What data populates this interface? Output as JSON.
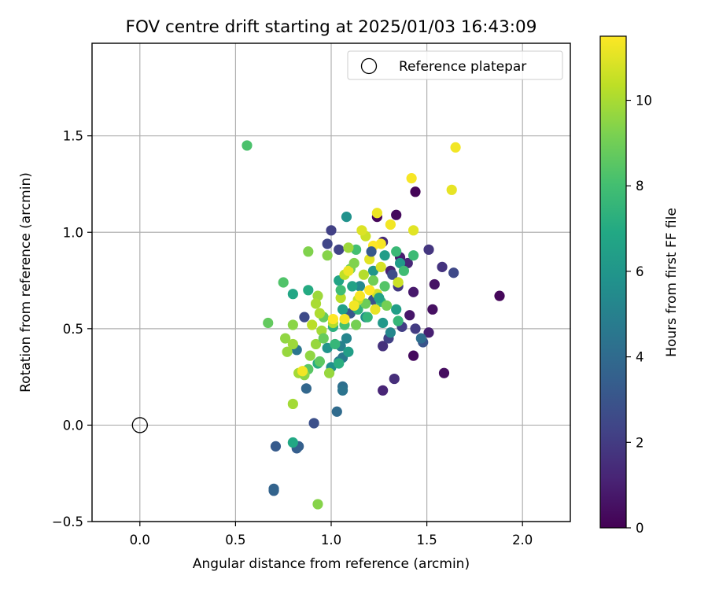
{
  "chart_data": {
    "type": "scatter",
    "title": "FOV centre drift starting at 2025/01/03 16:43:09",
    "xlabel": "Angular distance from reference (arcmin)",
    "ylabel": "Rotation from reference (arcmin)",
    "xlim": [
      -0.25,
      2.25
    ],
    "ylim": [
      -0.5,
      1.98
    ],
    "xticks": [
      0.0,
      0.5,
      1.0,
      1.5,
      2.0
    ],
    "xtick_labels": [
      "0.0",
      "0.5",
      "1.0",
      "1.5",
      "2.0"
    ],
    "yticks": [
      -0.5,
      0.0,
      0.5,
      1.0,
      1.5
    ],
    "ytick_labels": [
      "−0.5",
      "0.0",
      "0.5",
      "1.0",
      "1.5"
    ],
    "grid": true,
    "legend": {
      "position": "top-right",
      "entries": [
        "Reference platepar"
      ]
    },
    "reference_point": {
      "x": 0.0,
      "y": 0.0,
      "marker": "open-circle",
      "label": "Reference platepar"
    },
    "colorbar": {
      "label": "Hours from first FF file",
      "colormap": "viridis",
      "range": [
        0,
        11.5
      ],
      "ticks": [
        0,
        2,
        4,
        6,
        8,
        10
      ],
      "tick_labels": [
        "0",
        "2",
        "4",
        "6",
        "8",
        "10"
      ]
    },
    "points": [
      {
        "x": 1.88,
        "y": 0.67,
        "h": 0.2
      },
      {
        "x": 1.44,
        "y": 1.21,
        "h": 0.1
      },
      {
        "x": 1.24,
        "y": 1.08,
        "h": 0.2
      },
      {
        "x": 1.34,
        "y": 1.09,
        "h": 0.3
      },
      {
        "x": 1.59,
        "y": 0.27,
        "h": 0.4
      },
      {
        "x": 1.43,
        "y": 0.36,
        "h": 0.3
      },
      {
        "x": 1.53,
        "y": 0.6,
        "h": 0.5
      },
      {
        "x": 1.54,
        "y": 0.73,
        "h": 0.6
      },
      {
        "x": 1.43,
        "y": 0.69,
        "h": 0.8
      },
      {
        "x": 1.41,
        "y": 0.57,
        "h": 0.7
      },
      {
        "x": 1.36,
        "y": 0.87,
        "h": 0.9
      },
      {
        "x": 1.51,
        "y": 0.48,
        "h": 1.0
      },
      {
        "x": 1.27,
        "y": 0.18,
        "h": 1.2
      },
      {
        "x": 1.31,
        "y": 0.8,
        "h": 1.1
      },
      {
        "x": 1.4,
        "y": 0.84,
        "h": 1.3
      },
      {
        "x": 1.27,
        "y": 0.95,
        "h": 1.4
      },
      {
        "x": 1.33,
        "y": 0.24,
        "h": 1.5
      },
      {
        "x": 1.27,
        "y": 0.41,
        "h": 1.6
      },
      {
        "x": 1.58,
        "y": 0.82,
        "h": 1.7
      },
      {
        "x": 1.51,
        "y": 0.91,
        "h": 1.8
      },
      {
        "x": 1.44,
        "y": 0.5,
        "h": 2.0
      },
      {
        "x": 1.37,
        "y": 0.51,
        "h": 2.1
      },
      {
        "x": 1.3,
        "y": 0.45,
        "h": 2.2
      },
      {
        "x": 1.35,
        "y": 0.72,
        "h": 1.9
      },
      {
        "x": 1.0,
        "y": 1.01,
        "h": 2.2
      },
      {
        "x": 0.98,
        "y": 0.94,
        "h": 2.4
      },
      {
        "x": 1.04,
        "y": 0.91,
        "h": 2.3
      },
      {
        "x": 1.64,
        "y": 0.79,
        "h": 2.5
      },
      {
        "x": 1.48,
        "y": 0.43,
        "h": 3.0
      },
      {
        "x": 0.91,
        "y": 0.01,
        "h": 2.8
      },
      {
        "x": 0.86,
        "y": 0.56,
        "h": 2.6
      },
      {
        "x": 1.32,
        "y": 0.78,
        "h": 2.7
      },
      {
        "x": 1.22,
        "y": 0.65,
        "h": 2.9
      },
      {
        "x": 1.1,
        "y": 0.58,
        "h": 3.1
      },
      {
        "x": 0.71,
        "y": -0.11,
        "h": 3.3
      },
      {
        "x": 0.82,
        "y": -0.12,
        "h": 3.4
      },
      {
        "x": 0.83,
        "y": -0.11,
        "h": 3.5
      },
      {
        "x": 0.7,
        "y": -0.34,
        "h": 3.6
      },
      {
        "x": 0.7,
        "y": -0.33,
        "h": 3.7
      },
      {
        "x": 0.87,
        "y": 0.19,
        "h": 3.8
      },
      {
        "x": 1.03,
        "y": 0.07,
        "h": 4.0
      },
      {
        "x": 1.06,
        "y": 0.2,
        "h": 4.2
      },
      {
        "x": 1.06,
        "y": 0.18,
        "h": 4.4
      },
      {
        "x": 0.82,
        "y": 0.39,
        "h": 4.5
      },
      {
        "x": 1.08,
        "y": 1.08,
        "h": 5.8
      },
      {
        "x": 1.06,
        "y": 0.35,
        "h": 4.6
      },
      {
        "x": 1.04,
        "y": 0.33,
        "h": 4.8
      },
      {
        "x": 1.05,
        "y": 0.41,
        "h": 5.0
      },
      {
        "x": 1.08,
        "y": 0.45,
        "h": 5.2
      },
      {
        "x": 1.15,
        "y": 0.72,
        "h": 5.4
      },
      {
        "x": 1.18,
        "y": 0.56,
        "h": 5.6
      },
      {
        "x": 1.0,
        "y": 0.3,
        "h": 5.7
      },
      {
        "x": 0.98,
        "y": 0.4,
        "h": 5.9
      },
      {
        "x": 1.22,
        "y": 0.8,
        "h": 6.0
      },
      {
        "x": 1.27,
        "y": 0.53,
        "h": 6.1
      },
      {
        "x": 1.36,
        "y": 0.84,
        "h": 6.2
      },
      {
        "x": 1.28,
        "y": 0.88,
        "h": 6.3
      },
      {
        "x": 1.34,
        "y": 0.6,
        "h": 6.4
      },
      {
        "x": 1.06,
        "y": 0.6,
        "h": 6.5
      },
      {
        "x": 1.11,
        "y": 0.72,
        "h": 6.6
      },
      {
        "x": 1.04,
        "y": 0.75,
        "h": 6.7
      },
      {
        "x": 0.8,
        "y": 0.68,
        "h": 6.8
      },
      {
        "x": 0.88,
        "y": 0.7,
        "h": 7.0
      },
      {
        "x": 0.8,
        "y": -0.09,
        "h": 6.9
      },
      {
        "x": 0.93,
        "y": 0.32,
        "h": 7.1
      },
      {
        "x": 1.04,
        "y": 0.32,
        "h": 7.2
      },
      {
        "x": 1.01,
        "y": 0.51,
        "h": 7.3
      },
      {
        "x": 1.14,
        "y": 0.6,
        "h": 7.4
      },
      {
        "x": 1.26,
        "y": 0.64,
        "h": 7.5
      },
      {
        "x": 1.35,
        "y": 0.54,
        "h": 7.6
      },
      {
        "x": 1.34,
        "y": 0.9,
        "h": 7.7
      },
      {
        "x": 1.43,
        "y": 0.88,
        "h": 7.8
      },
      {
        "x": 1.38,
        "y": 0.8,
        "h": 7.9
      },
      {
        "x": 1.13,
        "y": 0.91,
        "h": 8.0
      },
      {
        "x": 1.07,
        "y": 0.52,
        "h": 8.1
      },
      {
        "x": 0.56,
        "y": 1.45,
        "h": 8.2
      },
      {
        "x": 0.75,
        "y": 0.74,
        "h": 8.3
      },
      {
        "x": 0.88,
        "y": 0.29,
        "h": 8.5
      },
      {
        "x": 0.94,
        "y": 0.33,
        "h": 8.6
      },
      {
        "x": 0.67,
        "y": 0.53,
        "h": 8.7
      },
      {
        "x": 0.96,
        "y": 0.56,
        "h": 8.8
      },
      {
        "x": 1.18,
        "y": 0.63,
        "h": 8.9
      },
      {
        "x": 1.22,
        "y": 0.75,
        "h": 9.0
      },
      {
        "x": 1.29,
        "y": 0.62,
        "h": 9.1
      },
      {
        "x": 1.35,
        "y": 0.74,
        "h": 9.2
      },
      {
        "x": 1.1,
        "y": 0.81,
        "h": 9.0
      },
      {
        "x": 0.88,
        "y": 0.9,
        "h": 9.3
      },
      {
        "x": 0.93,
        "y": -0.41,
        "h": 9.4
      },
      {
        "x": 0.8,
        "y": 0.52,
        "h": 9.5
      },
      {
        "x": 0.76,
        "y": 0.45,
        "h": 9.6
      },
      {
        "x": 0.77,
        "y": 0.38,
        "h": 9.7
      },
      {
        "x": 0.8,
        "y": 0.42,
        "h": 9.8
      },
      {
        "x": 0.83,
        "y": 0.27,
        "h": 9.9
      },
      {
        "x": 0.86,
        "y": 0.26,
        "h": 9.5
      },
      {
        "x": 0.89,
        "y": 0.36,
        "h": 9.6
      },
      {
        "x": 0.92,
        "y": 0.42,
        "h": 9.7
      },
      {
        "x": 0.93,
        "y": 0.67,
        "h": 9.8
      },
      {
        "x": 0.95,
        "y": 0.49,
        "h": 9.9
      },
      {
        "x": 0.98,
        "y": 0.88,
        "h": 9.4
      },
      {
        "x": 0.99,
        "y": 0.27,
        "h": 9.7
      },
      {
        "x": 1.09,
        "y": 0.92,
        "h": 9.8
      },
      {
        "x": 0.8,
        "y": 0.11,
        "h": 9.9
      },
      {
        "x": 0.92,
        "y": 0.63,
        "h": 10.0
      },
      {
        "x": 0.94,
        "y": 0.58,
        "h": 10.1
      },
      {
        "x": 1.01,
        "y": 0.53,
        "h": 10.2
      },
      {
        "x": 1.05,
        "y": 0.66,
        "h": 10.3
      },
      {
        "x": 1.07,
        "y": 0.78,
        "h": 10.4
      },
      {
        "x": 1.14,
        "y": 0.65,
        "h": 10.5
      },
      {
        "x": 1.18,
        "y": 0.98,
        "h": 10.6
      },
      {
        "x": 1.24,
        "y": 0.68,
        "h": 10.7
      },
      {
        "x": 1.26,
        "y": 0.82,
        "h": 10.8
      },
      {
        "x": 1.35,
        "y": 0.74,
        "h": 10.6
      },
      {
        "x": 1.16,
        "y": 1.01,
        "h": 10.9
      },
      {
        "x": 1.2,
        "y": 0.86,
        "h": 11.0
      },
      {
        "x": 1.43,
        "y": 1.01,
        "h": 11.0
      },
      {
        "x": 1.63,
        "y": 1.22,
        "h": 11.1
      },
      {
        "x": 1.65,
        "y": 1.44,
        "h": 11.3
      },
      {
        "x": 1.42,
        "y": 1.28,
        "h": 11.4
      },
      {
        "x": 1.24,
        "y": 1.1,
        "h": 11.2
      },
      {
        "x": 1.31,
        "y": 1.04,
        "h": 11.3
      },
      {
        "x": 1.26,
        "y": 0.94,
        "h": 11.4
      },
      {
        "x": 1.22,
        "y": 0.93,
        "h": 11.5
      },
      {
        "x": 1.09,
        "y": 0.8,
        "h": 11.2
      },
      {
        "x": 1.12,
        "y": 0.62,
        "h": 11.3
      },
      {
        "x": 1.07,
        "y": 0.55,
        "h": 11.4
      },
      {
        "x": 1.01,
        "y": 0.55,
        "h": 11.5
      },
      {
        "x": 0.85,
        "y": 0.28,
        "h": 11.3
      },
      {
        "x": 1.15,
        "y": 0.67,
        "h": 11.4
      },
      {
        "x": 1.2,
        "y": 0.7,
        "h": 11.5
      },
      {
        "x": 1.23,
        "y": 0.6,
        "h": 11.1
      },
      {
        "x": 1.17,
        "y": 0.78,
        "h": 10.2
      },
      {
        "x": 1.12,
        "y": 0.84,
        "h": 9.3
      },
      {
        "x": 1.28,
        "y": 0.72,
        "h": 8.4
      },
      {
        "x": 1.19,
        "y": 0.56,
        "h": 7.5
      },
      {
        "x": 1.25,
        "y": 0.66,
        "h": 6.6
      },
      {
        "x": 1.31,
        "y": 0.48,
        "h": 5.3
      },
      {
        "x": 1.47,
        "y": 0.45,
        "h": 4.1
      },
      {
        "x": 1.21,
        "y": 0.9,
        "h": 3.2
      },
      {
        "x": 0.96,
        "y": 0.45,
        "h": 8.8
      },
      {
        "x": 1.02,
        "y": 0.42,
        "h": 7.6
      },
      {
        "x": 1.09,
        "y": 0.38,
        "h": 6.4
      },
      {
        "x": 0.9,
        "y": 0.52,
        "h": 10.3
      },
      {
        "x": 1.13,
        "y": 0.52,
        "h": 9.1
      },
      {
        "x": 1.05,
        "y": 0.7,
        "h": 7.9
      }
    ]
  }
}
